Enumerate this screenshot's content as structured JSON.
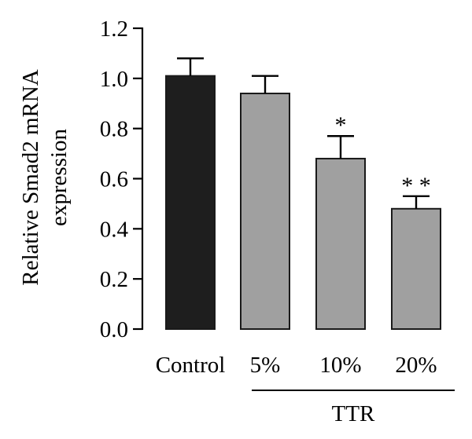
{
  "chart_data": {
    "type": "bar",
    "ylabel_line1": "Relative Smad2 mRNA",
    "ylabel_line2": "expression",
    "ylim": [
      0,
      1.2
    ],
    "yticks": [
      "0.0",
      "0.2",
      "0.4",
      "0.6",
      "0.8",
      "1.0",
      "1.2"
    ],
    "grid": false,
    "categories": [
      "Control",
      "5%",
      "10%",
      "20%"
    ],
    "values": [
      1.01,
      0.94,
      0.68,
      0.48
    ],
    "errors": [
      0.07,
      0.07,
      0.09,
      0.05
    ],
    "significance": [
      "",
      "",
      "*",
      "**"
    ],
    "bar_colors": [
      "#1e1e1e",
      "#a0a0a0",
      "#a0a0a0",
      "#a0a0a0"
    ],
    "group_label": "TTR"
  }
}
